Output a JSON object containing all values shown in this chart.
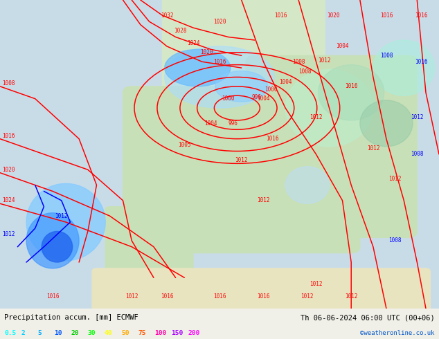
{
  "title_left": "Precipitation accum. [mm] ECMWF",
  "title_right": "Th 06-06-2024 06:00 UTC (00+06)",
  "credit": "©weatheronline.co.uk",
  "legend_values": [
    "0.5",
    "2",
    "5",
    "10",
    "20",
    "30",
    "40",
    "50",
    "75",
    "100",
    "150",
    "200"
  ],
  "legend_colors": [
    "#00ffff",
    "#00cfff",
    "#00aaff",
    "#0055ff",
    "#00cc00",
    "#00ff00",
    "#ffff00",
    "#ffaa00",
    "#ff5500",
    "#ff00aa",
    "#aa00ff",
    "#ff00ff"
  ],
  "bg_color": "#f0f0e8",
  "map_bg": "#c8e6c8",
  "text_color": "#000000",
  "bottom_bar_color": "#ffffff",
  "bottom_bar_height": 0.09,
  "figsize": [
    6.34,
    4.9
  ],
  "dpi": 100
}
